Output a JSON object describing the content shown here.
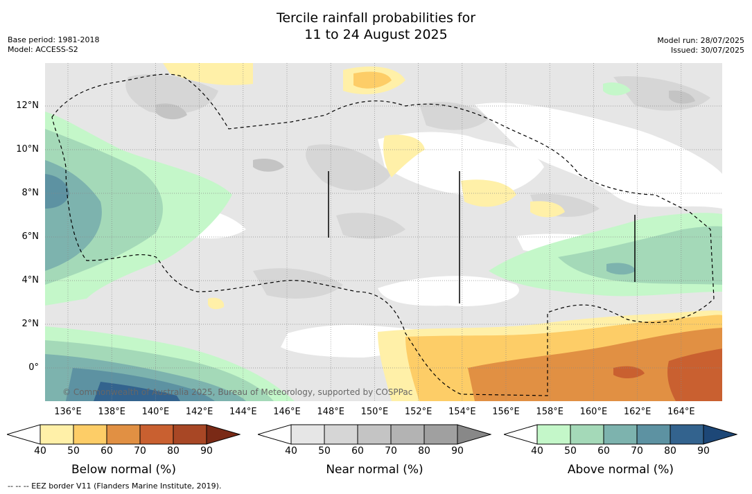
{
  "title_line1": "Tercile rainfall probabilities for",
  "title_line2": "11 to 24 August 2025",
  "base_period": "Base period: 1981-2018",
  "model": "Model: ACCESS-S2",
  "model_run": "Model run: 28/07/2025",
  "issued": "Issued: 30/07/2025",
  "x_ticks": [
    "136°E",
    "138°E",
    "140°E",
    "142°E",
    "144°E",
    "146°E",
    "148°E",
    "150°E",
    "152°E",
    "154°E",
    "156°E",
    "158°E",
    "160°E",
    "162°E",
    "164°E"
  ],
  "y_ticks": [
    "12°N",
    "10°N",
    "8°N",
    "6°N",
    "4°N",
    "2°N",
    "0°"
  ],
  "copyright": "© Commonwealth of Australia 2025, Bureau of Meteorology, supported by COSPPac",
  "colorbars": [
    {
      "title": "Below normal (%)",
      "labels": [
        "40",
        "50",
        "60",
        "70",
        "80",
        "90"
      ],
      "colors": [
        "#ffffff",
        "#fff0a8",
        "#fdcd67",
        "#e19043",
        "#c96030",
        "#a84725",
        "#7a2a16"
      ]
    },
    {
      "title": "Near normal (%)",
      "labels": [
        "40",
        "50",
        "60",
        "70",
        "80",
        "90"
      ],
      "colors": [
        "#ffffff",
        "#e6e6e6",
        "#d6d6d6",
        "#c4c4c4",
        "#b3b3b3",
        "#a0a0a0",
        "#888888"
      ]
    },
    {
      "title": "Above normal (%)",
      "labels": [
        "40",
        "50",
        "60",
        "70",
        "80",
        "90"
      ],
      "colors": [
        "#ffffff",
        "#c4f7c9",
        "#a4d9b8",
        "#7db3ae",
        "#5d92a2",
        "#33638e",
        "#1d4777"
      ]
    }
  ],
  "footer": "--  --  -- EEZ border V11 (Flanders Marine Institute, 2019)."
}
